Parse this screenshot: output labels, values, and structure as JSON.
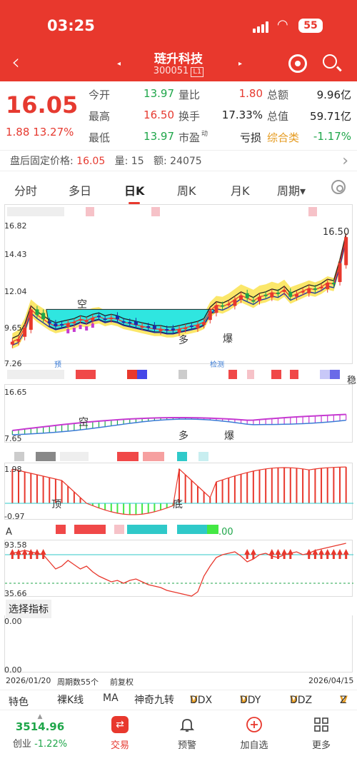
{
  "status": {
    "time": "03:25",
    "battery": "55"
  },
  "header": {
    "back": "‹",
    "name": "琏升科技",
    "code": "300051",
    "badge": "L1",
    "prev": "◂",
    "next": "▸"
  },
  "quote": {
    "price": "16.05",
    "change": "1.88",
    "pct": "13.27%",
    "rows": [
      [
        {
          "l": "今开",
          "v": "13.97",
          "c": "green"
        },
        {
          "l": "量比",
          "v": "1.80",
          "c": "red"
        },
        {
          "l": "总额",
          "v": "9.96亿",
          "c": ""
        }
      ],
      [
        {
          "l": "最高",
          "v": "16.50",
          "c": "red"
        },
        {
          "l": "换手",
          "v": "17.33%",
          "c": ""
        },
        {
          "l": "总值",
          "v": "59.71亿",
          "c": ""
        }
      ],
      [
        {
          "l": "最低",
          "v": "13.97",
          "c": "green"
        },
        {
          "l": "市盈",
          "sup": "动",
          "v": "亏损",
          "c": ""
        },
        {
          "l": "综合类",
          "v": "-1.17%",
          "c": "green"
        }
      ]
    ]
  },
  "after_hours": {
    "label": "盘后固定价格:",
    "price": "16.05",
    "vol_label": "量:",
    "vol": "15",
    "amt_label": "额:",
    "amt": "24075"
  },
  "tabs": [
    "分时",
    "多日",
    "日K",
    "周K",
    "月K",
    "周期"
  ],
  "active_tab": "日K",
  "kline": {
    "axis": [
      "16.82",
      "14.43",
      "12.04",
      "9.65",
      "7.26"
    ],
    "high_label": "16.50",
    "annotations": {
      "kong": "空",
      "duo": "多",
      "bao": "爆",
      "yu": "预",
      "jian": "检测"
    }
  },
  "ind1": {
    "axis_top": "16.65",
    "axis_bottom": "7.65",
    "kong": "空",
    "duo": "多",
    "bao": "爆",
    "right": "稳"
  },
  "ind2": {
    "axis_top": "1.98",
    "axis_bottom": "-0.97",
    "ding": "顶",
    "di": "底"
  },
  "ind3": {
    "axis_top": "93.58",
    "axis_bottom": "35.66",
    "prefix": "A",
    "suffix": ".00"
  },
  "select_indicator": {
    "label": "选择指标",
    "top": "0.00",
    "bottom": "0.00"
  },
  "date_axis": {
    "start": "2026/01/20",
    "count_label": "周期数55个",
    "adj": "前复权",
    "end": "2026/04/15"
  },
  "tools": [
    "特色",
    "裸K线",
    "MA",
    "神奇九转",
    "DDX",
    "DDY",
    "DDZ",
    "Z"
  ],
  "bottom_nav": {
    "index_value": "3514.96",
    "index_name": "创业",
    "index_pct": "-1.22%",
    "items": [
      "交易",
      "预警",
      "加自选",
      "更多"
    ]
  },
  "chart_data": {
    "type": "candlestick",
    "ylim": [
      7.26,
      16.82
    ],
    "last_high": 16.5
  }
}
